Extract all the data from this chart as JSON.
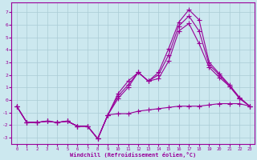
{
  "xlabel": "Windchill (Refroidissement éolien,°C)",
  "bg_color": "#cce8ef",
  "grid_color": "#aaccd5",
  "line_color": "#990099",
  "xlim": [
    -0.5,
    23.5
  ],
  "ylim": [
    -3.5,
    7.8
  ],
  "yticks": [
    -3,
    -2,
    -1,
    0,
    1,
    2,
    3,
    4,
    5,
    6,
    7
  ],
  "xticks": [
    0,
    1,
    2,
    3,
    4,
    5,
    6,
    7,
    8,
    9,
    10,
    11,
    12,
    13,
    14,
    15,
    16,
    17,
    18,
    19,
    20,
    21,
    22,
    23
  ],
  "line1_x": [
    0,
    1,
    2,
    3,
    4,
    5,
    6,
    7,
    8,
    9,
    10,
    11,
    12,
    13,
    14,
    15,
    16,
    17,
    18,
    19,
    20,
    21,
    22,
    23
  ],
  "line1_y": [
    -0.5,
    -1.8,
    -1.8,
    -1.7,
    -1.8,
    -1.7,
    -2.1,
    -2.1,
    -3.1,
    -1.2,
    -1.1,
    -1.1,
    -0.9,
    -0.8,
    -0.7,
    -0.6,
    -0.5,
    -0.5,
    -0.5,
    -0.4,
    -0.3,
    -0.3,
    -0.3,
    -0.5
  ],
  "line2_x": [
    0,
    1,
    2,
    3,
    4,
    5,
    6,
    7,
    8,
    9,
    10,
    11,
    12,
    13,
    14,
    15,
    16,
    17,
    18,
    19,
    20,
    21,
    22,
    23
  ],
  "line2_y": [
    -0.5,
    -1.8,
    -1.8,
    -1.7,
    -1.8,
    -1.7,
    -2.1,
    -2.1,
    -3.1,
    -1.2,
    0.5,
    1.5,
    2.2,
    1.5,
    2.2,
    4.1,
    6.2,
    7.2,
    6.4,
    3.0,
    2.1,
    1.2,
    0.2,
    -0.5
  ],
  "line3_x": [
    0,
    1,
    2,
    3,
    4,
    5,
    6,
    7,
    8,
    9,
    10,
    11,
    12,
    13,
    14,
    15,
    16,
    17,
    18,
    19,
    20,
    21,
    22,
    23
  ],
  "line3_y": [
    -0.5,
    -1.8,
    -1.8,
    -1.7,
    -1.8,
    -1.7,
    -2.1,
    -2.1,
    -3.1,
    -1.2,
    0.1,
    1.0,
    2.2,
    1.5,
    1.7,
    3.1,
    5.5,
    6.1,
    4.5,
    2.6,
    1.8,
    1.1,
    0.1,
    -0.5
  ],
  "line4_x": [
    0,
    1,
    2,
    3,
    4,
    5,
    6,
    7,
    8,
    9,
    10,
    11,
    12,
    13,
    14,
    15,
    16,
    17,
    18,
    19,
    20,
    21,
    22,
    23
  ],
  "line4_y": [
    -0.5,
    -1.8,
    -1.8,
    -1.7,
    -1.8,
    -1.7,
    -2.1,
    -2.1,
    -3.1,
    -1.2,
    0.3,
    1.2,
    2.2,
    1.5,
    2.0,
    3.6,
    5.9,
    6.7,
    5.5,
    2.8,
    2.0,
    1.1,
    0.15,
    -0.5
  ]
}
